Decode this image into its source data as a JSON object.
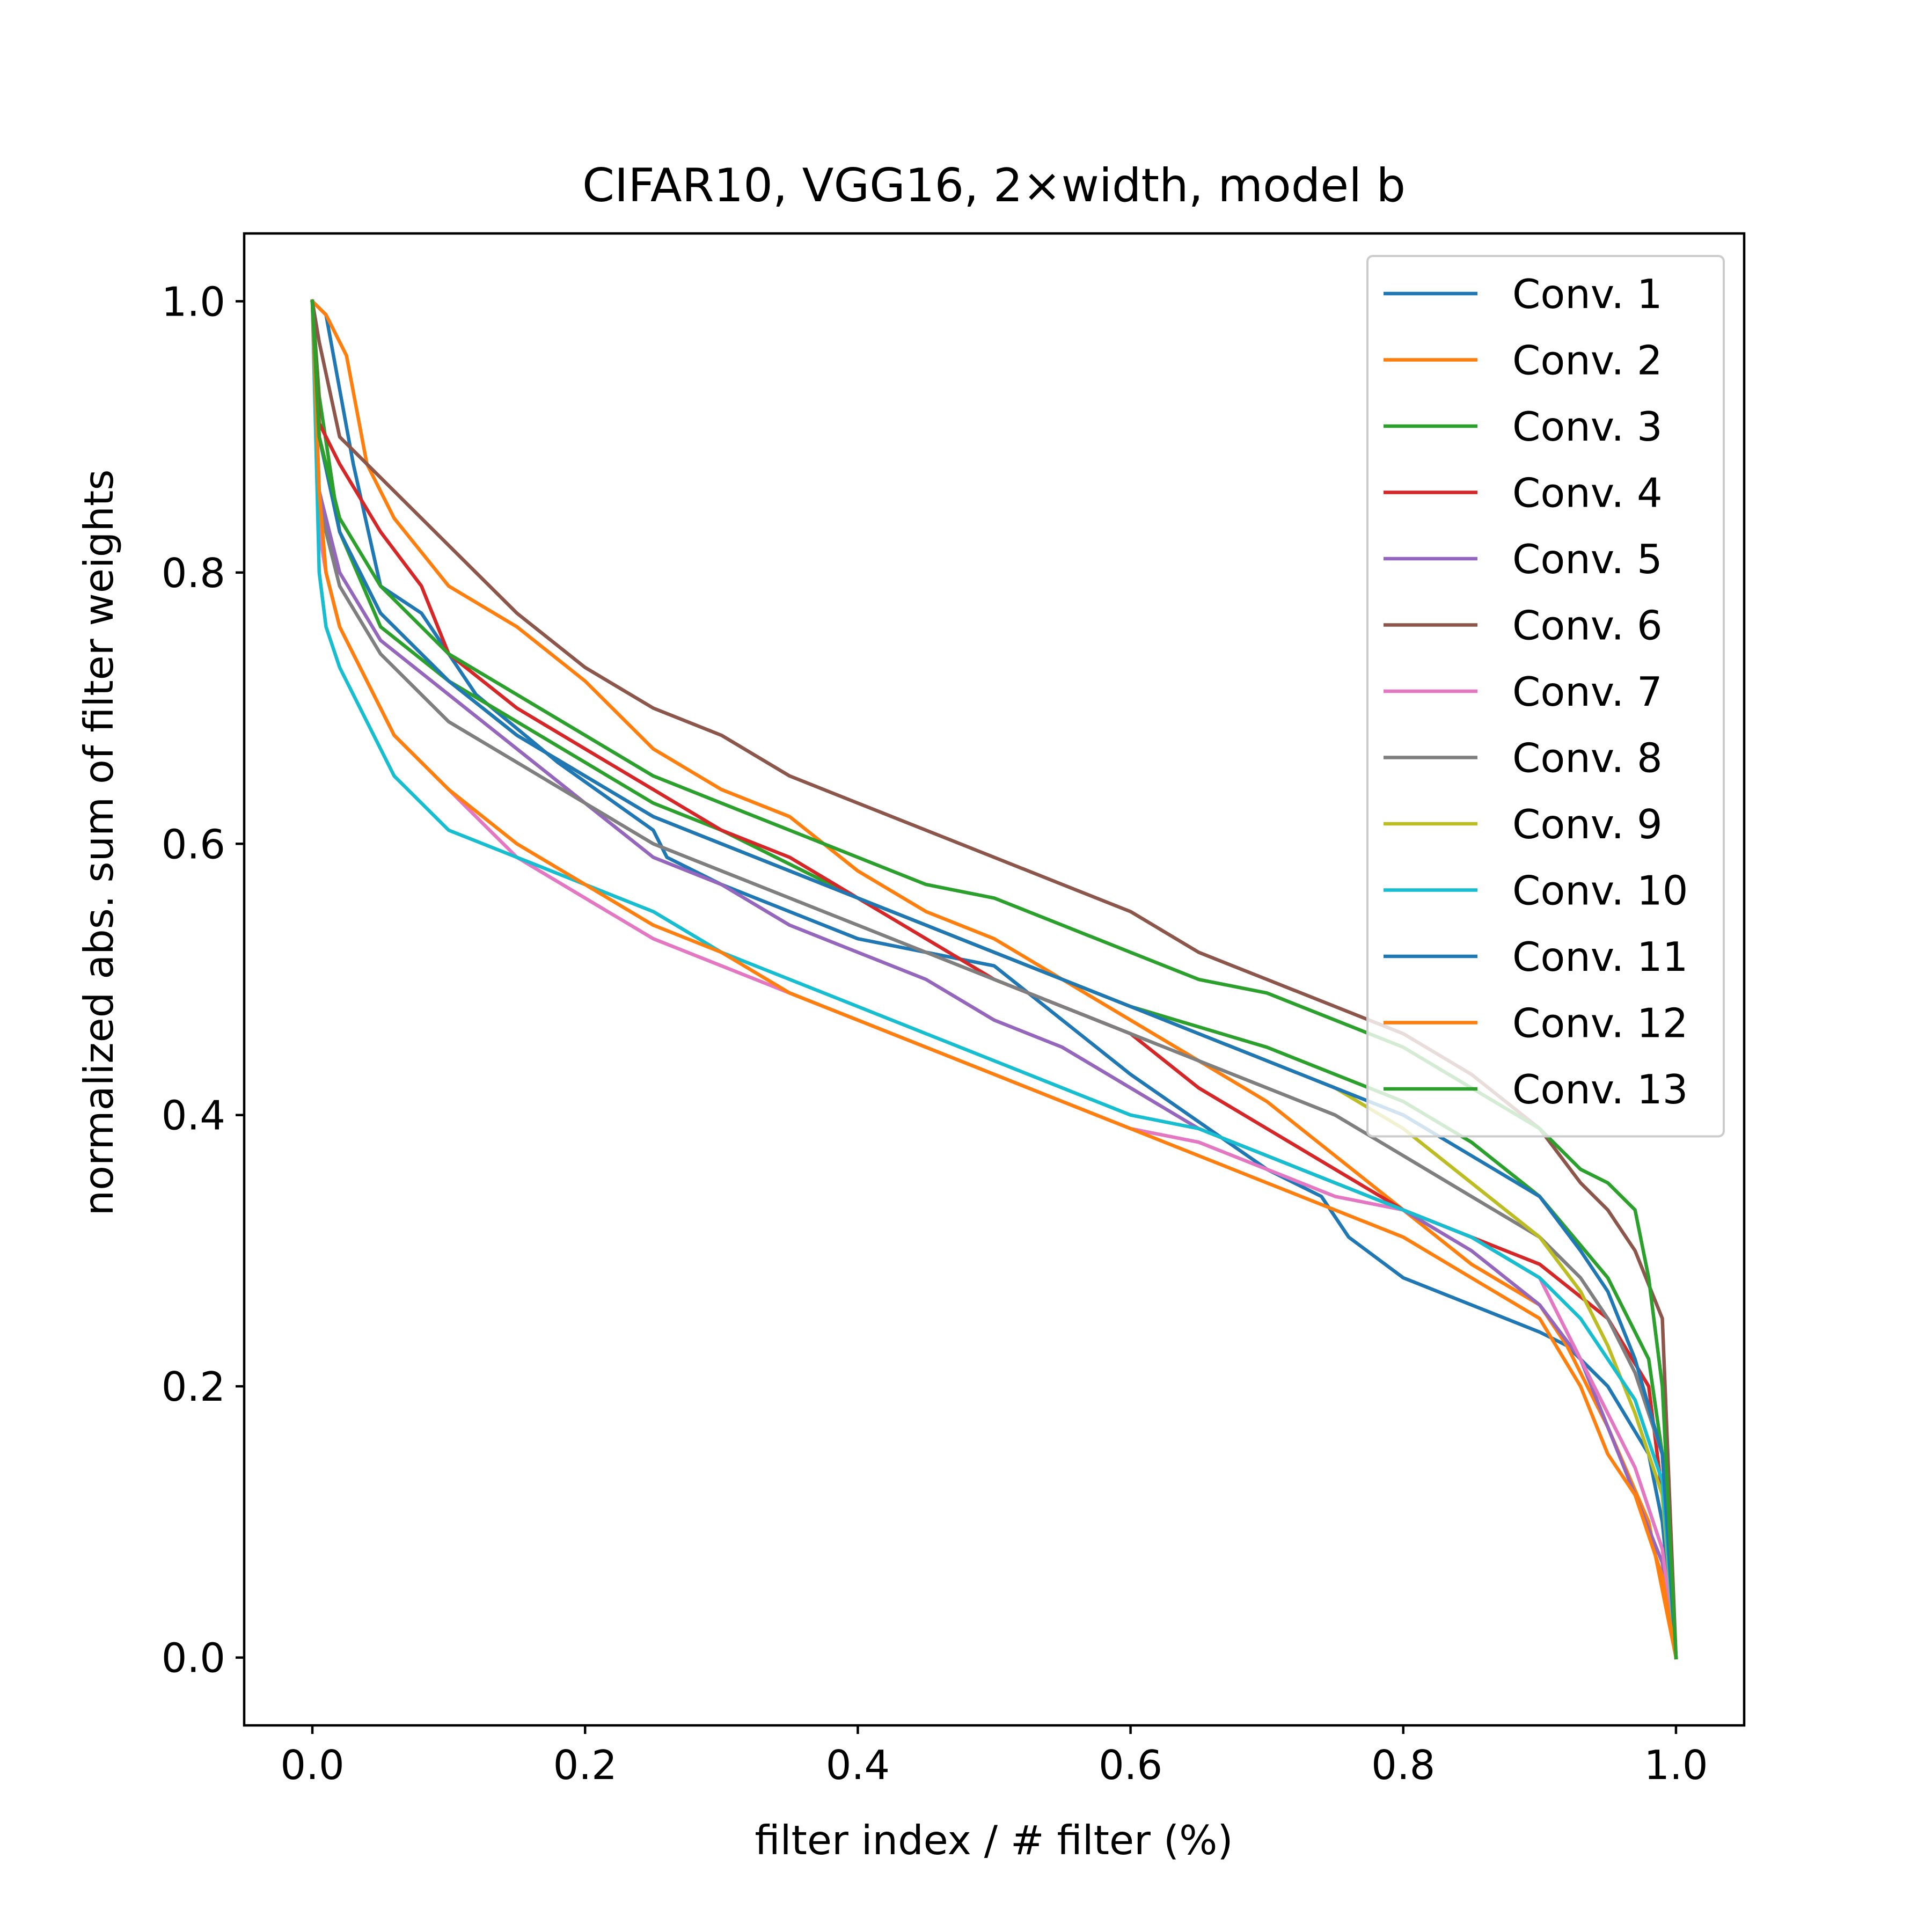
{
  "chart_data": {
    "type": "line",
    "title": "CIFAR10, VGG16, 2×width, model b",
    "xlabel": "filter index / # filter (%)",
    "ylabel": "normalized abs. sum of filter weights",
    "xlim": [
      -0.05,
      1.05
    ],
    "ylim": [
      -0.05,
      1.05
    ],
    "xticks": [
      0.0,
      0.2,
      0.4,
      0.6,
      0.8,
      1.0
    ],
    "xtick_labels": [
      "0.0",
      "0.2",
      "0.4",
      "0.6",
      "0.8",
      "1.0"
    ],
    "yticks": [
      0.0,
      0.2,
      0.4,
      0.6,
      0.8,
      1.0
    ],
    "ytick_labels": [
      "0.0",
      "0.2",
      "0.4",
      "0.6",
      "0.8",
      "1.0"
    ],
    "grid": false,
    "legend_position": "upper right",
    "series": [
      {
        "name": "Conv. 1",
        "color": "#1f77b4",
        "x": [
          0,
          0.01,
          0.03,
          0.05,
          0.08,
          0.12,
          0.18,
          0.25,
          0.26,
          0.3,
          0.4,
          0.5,
          0.55,
          0.6,
          0.7,
          0.74,
          0.76,
          0.8,
          0.85,
          0.9,
          0.92,
          0.95,
          0.98,
          0.99,
          1.0
        ],
        "y": [
          1.0,
          0.99,
          0.88,
          0.79,
          0.77,
          0.71,
          0.66,
          0.61,
          0.59,
          0.57,
          0.53,
          0.51,
          0.47,
          0.43,
          0.36,
          0.34,
          0.31,
          0.28,
          0.26,
          0.24,
          0.23,
          0.2,
          0.15,
          0.1,
          0.0
        ]
      },
      {
        "name": "Conv. 2",
        "color": "#ff7f0e",
        "x": [
          0,
          0.01,
          0.025,
          0.04,
          0.06,
          0.1,
          0.15,
          0.2,
          0.25,
          0.3,
          0.35,
          0.4,
          0.45,
          0.5,
          0.55,
          0.6,
          0.65,
          0.7,
          0.75,
          0.8,
          0.85,
          0.9,
          0.92,
          0.95,
          0.98,
          0.99,
          1.0
        ],
        "y": [
          1.0,
          0.99,
          0.96,
          0.88,
          0.84,
          0.79,
          0.76,
          0.72,
          0.67,
          0.64,
          0.62,
          0.58,
          0.55,
          0.53,
          0.5,
          0.47,
          0.44,
          0.41,
          0.37,
          0.33,
          0.29,
          0.26,
          0.23,
          0.17,
          0.1,
          0.05,
          0.0
        ]
      },
      {
        "name": "Conv. 3",
        "color": "#2ca02c",
        "x": [
          0,
          0.005,
          0.02,
          0.05,
          0.1,
          0.15,
          0.2,
          0.25,
          0.3,
          0.4,
          0.5,
          0.6,
          0.7,
          0.8,
          0.85,
          0.9,
          0.95,
          0.98,
          0.99,
          1.0
        ],
        "y": [
          1.0,
          0.93,
          0.83,
          0.76,
          0.72,
          0.69,
          0.66,
          0.63,
          0.61,
          0.56,
          0.52,
          0.48,
          0.45,
          0.41,
          0.38,
          0.34,
          0.28,
          0.22,
          0.15,
          0.0
        ]
      },
      {
        "name": "Conv. 4",
        "color": "#d62728",
        "x": [
          0,
          0.005,
          0.02,
          0.05,
          0.08,
          0.1,
          0.15,
          0.2,
          0.25,
          0.3,
          0.35,
          0.4,
          0.45,
          0.5,
          0.55,
          0.6,
          0.65,
          0.7,
          0.75,
          0.8,
          0.85,
          0.9,
          0.95,
          0.98,
          0.99,
          1.0
        ],
        "y": [
          1.0,
          0.91,
          0.88,
          0.83,
          0.79,
          0.74,
          0.7,
          0.67,
          0.64,
          0.61,
          0.59,
          0.56,
          0.53,
          0.5,
          0.48,
          0.46,
          0.42,
          0.39,
          0.36,
          0.33,
          0.31,
          0.29,
          0.25,
          0.2,
          0.12,
          0.0
        ]
      },
      {
        "name": "Conv. 5",
        "color": "#9467bd",
        "x": [
          0,
          0.005,
          0.02,
          0.05,
          0.1,
          0.15,
          0.2,
          0.25,
          0.3,
          0.35,
          0.4,
          0.45,
          0.5,
          0.55,
          0.6,
          0.65,
          0.7,
          0.75,
          0.8,
          0.85,
          0.9,
          0.93,
          0.95,
          0.97,
          0.99,
          1.0
        ],
        "y": [
          1.0,
          0.86,
          0.8,
          0.75,
          0.71,
          0.67,
          0.63,
          0.59,
          0.57,
          0.54,
          0.52,
          0.5,
          0.47,
          0.45,
          0.42,
          0.39,
          0.37,
          0.35,
          0.33,
          0.3,
          0.26,
          0.22,
          0.17,
          0.12,
          0.07,
          0.0
        ]
      },
      {
        "name": "Conv. 6",
        "color": "#8c564b",
        "x": [
          0,
          0.005,
          0.02,
          0.05,
          0.1,
          0.15,
          0.2,
          0.25,
          0.3,
          0.35,
          0.4,
          0.45,
          0.5,
          0.55,
          0.6,
          0.65,
          0.7,
          0.75,
          0.8,
          0.85,
          0.9,
          0.93,
          0.95,
          0.97,
          0.99,
          1.0
        ],
        "y": [
          1.0,
          0.97,
          0.9,
          0.87,
          0.82,
          0.77,
          0.73,
          0.7,
          0.68,
          0.65,
          0.63,
          0.61,
          0.59,
          0.57,
          0.55,
          0.52,
          0.5,
          0.48,
          0.46,
          0.43,
          0.39,
          0.35,
          0.33,
          0.3,
          0.25,
          0.0
        ]
      },
      {
        "name": "Conv. 7",
        "color": "#e377c2",
        "x": [
          0,
          0.005,
          0.01,
          0.02,
          0.04,
          0.06,
          0.1,
          0.15,
          0.2,
          0.25,
          0.3,
          0.35,
          0.4,
          0.45,
          0.5,
          0.55,
          0.6,
          0.65,
          0.7,
          0.75,
          0.8,
          0.85,
          0.9,
          0.93,
          0.95,
          0.97,
          0.99,
          1.0
        ],
        "y": [
          1.0,
          0.83,
          0.8,
          0.76,
          0.72,
          0.68,
          0.64,
          0.59,
          0.56,
          0.53,
          0.51,
          0.49,
          0.47,
          0.45,
          0.43,
          0.41,
          0.39,
          0.38,
          0.36,
          0.34,
          0.33,
          0.31,
          0.28,
          0.22,
          0.18,
          0.14,
          0.08,
          0.0
        ]
      },
      {
        "name": "Conv. 8",
        "color": "#7f7f7f",
        "x": [
          0,
          0.005,
          0.02,
          0.05,
          0.1,
          0.15,
          0.2,
          0.25,
          0.3,
          0.35,
          0.4,
          0.45,
          0.5,
          0.55,
          0.6,
          0.65,
          0.7,
          0.75,
          0.8,
          0.85,
          0.9,
          0.93,
          0.95,
          0.97,
          0.99,
          1.0
        ],
        "y": [
          1.0,
          0.85,
          0.79,
          0.74,
          0.69,
          0.66,
          0.63,
          0.6,
          0.58,
          0.56,
          0.54,
          0.52,
          0.5,
          0.48,
          0.46,
          0.44,
          0.42,
          0.4,
          0.37,
          0.34,
          0.31,
          0.28,
          0.25,
          0.21,
          0.15,
          0.0
        ]
      },
      {
        "name": "Conv. 9",
        "color": "#bcbd22",
        "x": [
          0,
          0.005,
          0.02,
          0.05,
          0.1,
          0.15,
          0.2,
          0.25,
          0.3,
          0.35,
          0.4,
          0.45,
          0.5,
          0.55,
          0.6,
          0.65,
          0.7,
          0.75,
          0.8,
          0.85,
          0.9,
          0.93,
          0.95,
          0.97,
          0.99,
          1.0
        ],
        "y": [
          1.0,
          0.9,
          0.83,
          0.77,
          0.72,
          0.68,
          0.65,
          0.62,
          0.6,
          0.58,
          0.56,
          0.54,
          0.52,
          0.5,
          0.48,
          0.46,
          0.44,
          0.42,
          0.39,
          0.35,
          0.31,
          0.27,
          0.23,
          0.18,
          0.12,
          0.0
        ]
      },
      {
        "name": "Conv. 10",
        "color": "#17becf",
        "x": [
          0,
          0.005,
          0.01,
          0.02,
          0.04,
          0.06,
          0.08,
          0.1,
          0.15,
          0.2,
          0.25,
          0.3,
          0.35,
          0.4,
          0.45,
          0.5,
          0.55,
          0.6,
          0.65,
          0.7,
          0.75,
          0.8,
          0.85,
          0.9,
          0.93,
          0.95,
          0.97,
          0.99,
          1.0
        ],
        "y": [
          1.0,
          0.8,
          0.76,
          0.73,
          0.69,
          0.65,
          0.63,
          0.61,
          0.59,
          0.57,
          0.55,
          0.52,
          0.5,
          0.48,
          0.46,
          0.44,
          0.42,
          0.4,
          0.39,
          0.37,
          0.35,
          0.33,
          0.31,
          0.28,
          0.25,
          0.22,
          0.19,
          0.13,
          0.0
        ]
      },
      {
        "name": "Conv. 11",
        "color": "#1f77b4",
        "x": [
          0,
          0.005,
          0.02,
          0.05,
          0.1,
          0.15,
          0.2,
          0.25,
          0.3,
          0.35,
          0.4,
          0.45,
          0.5,
          0.55,
          0.6,
          0.65,
          0.7,
          0.75,
          0.8,
          0.85,
          0.9,
          0.93,
          0.95,
          0.97,
          0.99,
          1.0
        ],
        "y": [
          1.0,
          0.9,
          0.83,
          0.77,
          0.72,
          0.68,
          0.65,
          0.62,
          0.6,
          0.58,
          0.56,
          0.54,
          0.52,
          0.5,
          0.48,
          0.46,
          0.44,
          0.42,
          0.4,
          0.37,
          0.34,
          0.3,
          0.27,
          0.22,
          0.15,
          0.0
        ]
      },
      {
        "name": "Conv. 12",
        "color": "#ff7f0e",
        "x": [
          0,
          0.005,
          0.01,
          0.02,
          0.04,
          0.06,
          0.1,
          0.15,
          0.2,
          0.25,
          0.3,
          0.35,
          0.4,
          0.45,
          0.5,
          0.55,
          0.6,
          0.65,
          0.7,
          0.75,
          0.8,
          0.85,
          0.9,
          0.93,
          0.95,
          0.97,
          0.99,
          1.0
        ],
        "y": [
          1.0,
          0.86,
          0.8,
          0.76,
          0.72,
          0.68,
          0.64,
          0.6,
          0.57,
          0.54,
          0.52,
          0.49,
          0.47,
          0.45,
          0.43,
          0.41,
          0.39,
          0.37,
          0.35,
          0.33,
          0.31,
          0.28,
          0.25,
          0.2,
          0.15,
          0.12,
          0.06,
          0.0
        ]
      },
      {
        "name": "Conv. 13",
        "color": "#2ca02c",
        "x": [
          0,
          0.005,
          0.02,
          0.05,
          0.1,
          0.15,
          0.2,
          0.25,
          0.3,
          0.35,
          0.4,
          0.45,
          0.5,
          0.55,
          0.6,
          0.65,
          0.7,
          0.75,
          0.8,
          0.85,
          0.9,
          0.93,
          0.95,
          0.97,
          0.98,
          0.99,
          1.0
        ],
        "y": [
          1.0,
          0.9,
          0.84,
          0.79,
          0.74,
          0.71,
          0.68,
          0.65,
          0.63,
          0.61,
          0.59,
          0.57,
          0.56,
          0.54,
          0.52,
          0.5,
          0.49,
          0.47,
          0.45,
          0.42,
          0.39,
          0.36,
          0.35,
          0.33,
          0.28,
          0.2,
          0.0
        ]
      }
    ]
  }
}
